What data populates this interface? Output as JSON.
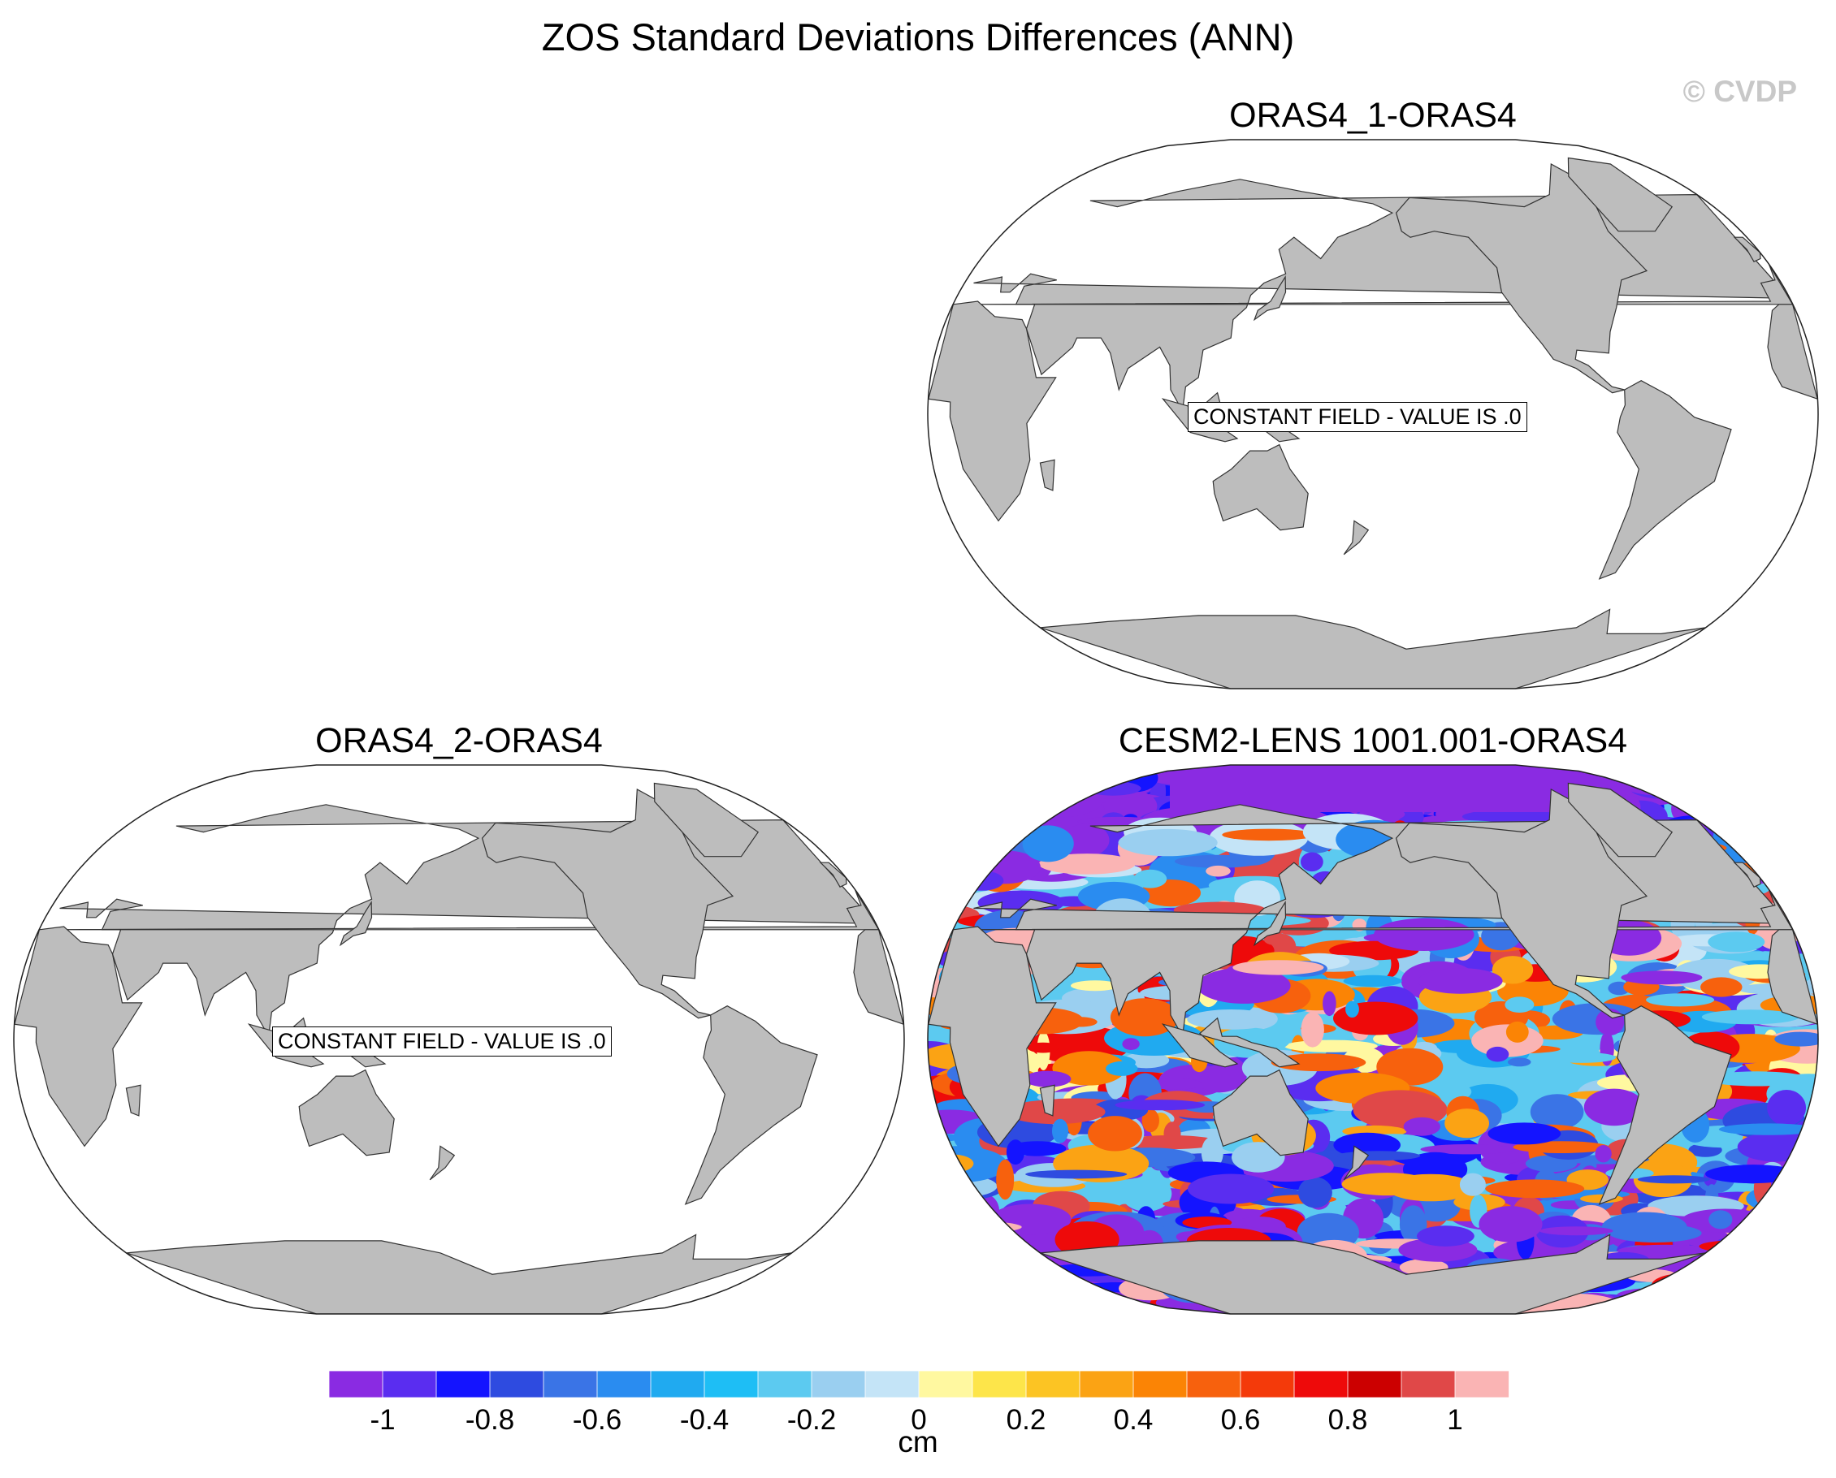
{
  "figure": {
    "title": "ZOS Standard Deviations Differences (ANN)",
    "watermark": "© CVDP"
  },
  "panels": [
    {
      "title": "ORAS4_1-ORAS4",
      "type": "constant",
      "message": "CONSTANT FIELD - VALUE IS .0"
    },
    {
      "title": "ORAS4_2-ORAS4",
      "type": "constant",
      "message": "CONSTANT FIELD - VALUE IS .0"
    },
    {
      "title": "CESM2-LENS 1001.001-ORAS4",
      "type": "filled-contour"
    }
  ],
  "colorbar": {
    "unit": "cm",
    "tick_labels": [
      "-1",
      "-0.8",
      "-0.6",
      "-0.4",
      "-0.2",
      "0",
      "0.2",
      "0.4",
      "0.6",
      "0.8",
      "1"
    ],
    "colors": [
      "#8a2be2",
      "#5a2df0",
      "#1414ff",
      "#2e4be0",
      "#3a74e6",
      "#2a8cf0",
      "#20aaf0",
      "#1ebef5",
      "#5ccaf0",
      "#9acff0",
      "#c4e4f7",
      "#fff8a0",
      "#fde54a",
      "#fcc423",
      "#fba314",
      "#fb8405",
      "#f7610d",
      "#f43a0a",
      "#ee0a0a",
      "#cc0000",
      "#e04848",
      "#fab4b4"
    ]
  },
  "map_colors": {
    "land": "#bdbdbd",
    "ocean": "#ffffff"
  }
}
